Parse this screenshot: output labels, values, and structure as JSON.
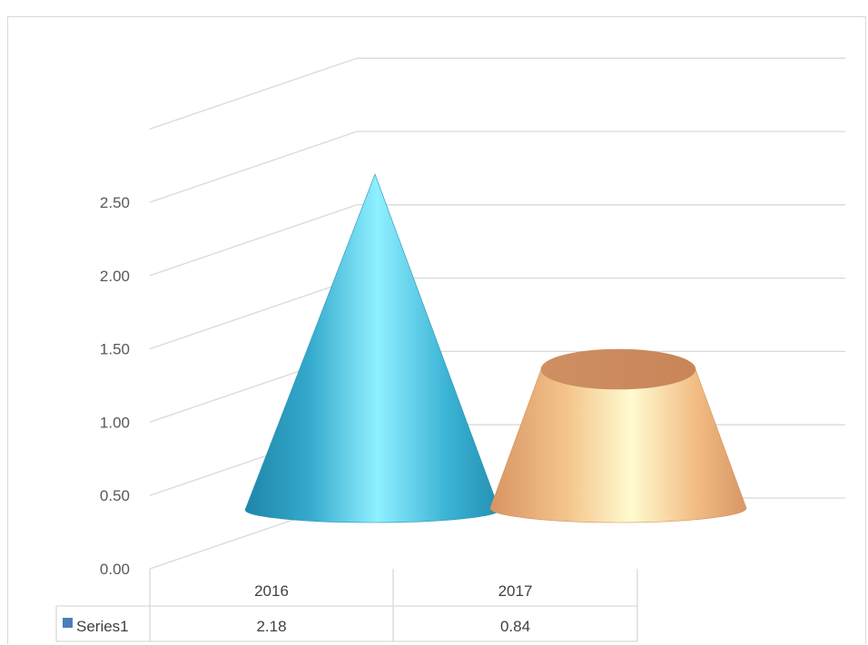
{
  "chart_data": {
    "type": "bar",
    "style": "3d-cone",
    "categories": [
      "2016",
      "2017"
    ],
    "series": [
      {
        "name": "Series1",
        "values": [
          2.18,
          0.84
        ]
      }
    ],
    "point_colors": [
      "#3cb4d6",
      "#f0b27a"
    ],
    "legend_color": "#4a7ebb",
    "y_ticks": [
      "0.00",
      "0.50",
      "1.00",
      "1.50",
      "2.00",
      "2.50"
    ],
    "ylim": [
      0,
      3
    ],
    "grid": true,
    "data_table": {
      "row_label": "Series1",
      "values": [
        "2.18",
        "0.84"
      ]
    }
  }
}
